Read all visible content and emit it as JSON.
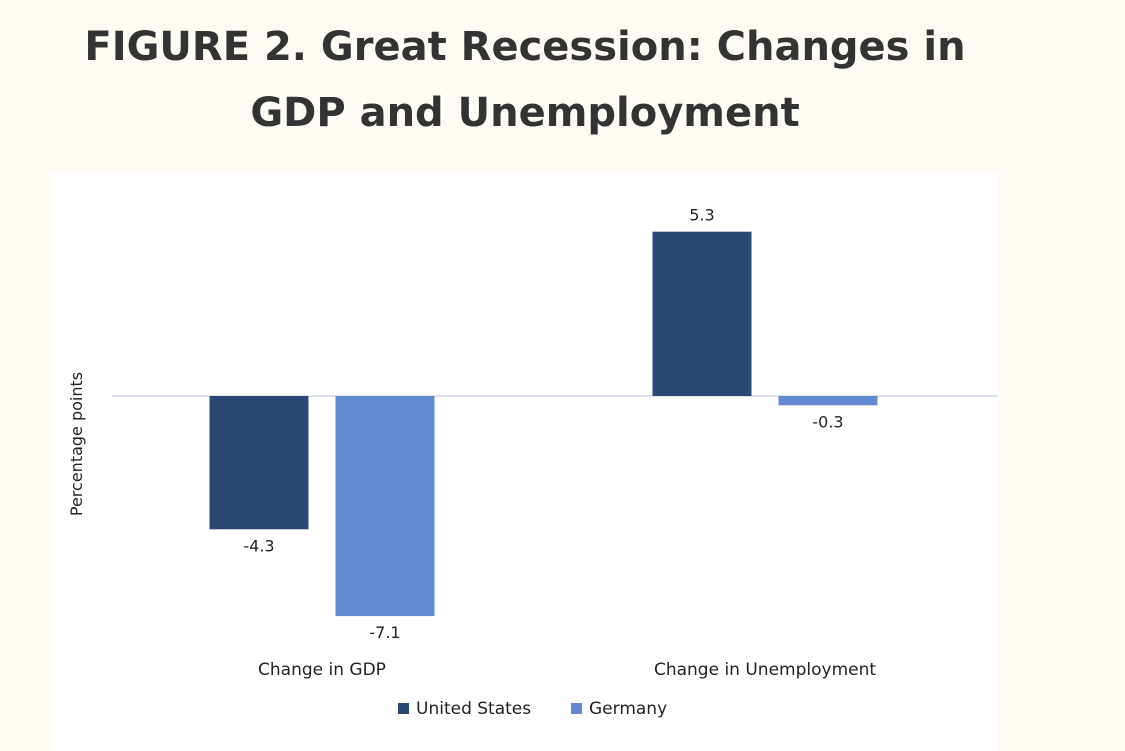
{
  "title": {
    "line1": "FIGURE 2. Great Recession: Changes in",
    "line2": "GDP and Unemployment"
  },
  "colors": {
    "background": "#fdfbf4",
    "panel": "#ffffff",
    "united_states": "#2b4875",
    "germany": "#628ad1",
    "zero_line": "#c8d2e2"
  },
  "chart_data": {
    "type": "bar",
    "title": "FIGURE 2. Great Recession: Changes in GDP and Unemployment",
    "ylabel": "Percentage points",
    "categories": [
      "Change in GDP",
      "Change in Unemployment"
    ],
    "series": [
      {
        "name": "United States",
        "values": [
          -4.3,
          5.3
        ],
        "labels": [
          "-4.3",
          "5.3"
        ]
      },
      {
        "name": "Germany",
        "values": [
          -7.1,
          -0.3
        ],
        "labels": [
          "-7.1",
          "-0.3"
        ]
      }
    ],
    "legend": "bottom-center",
    "grid": false
  }
}
